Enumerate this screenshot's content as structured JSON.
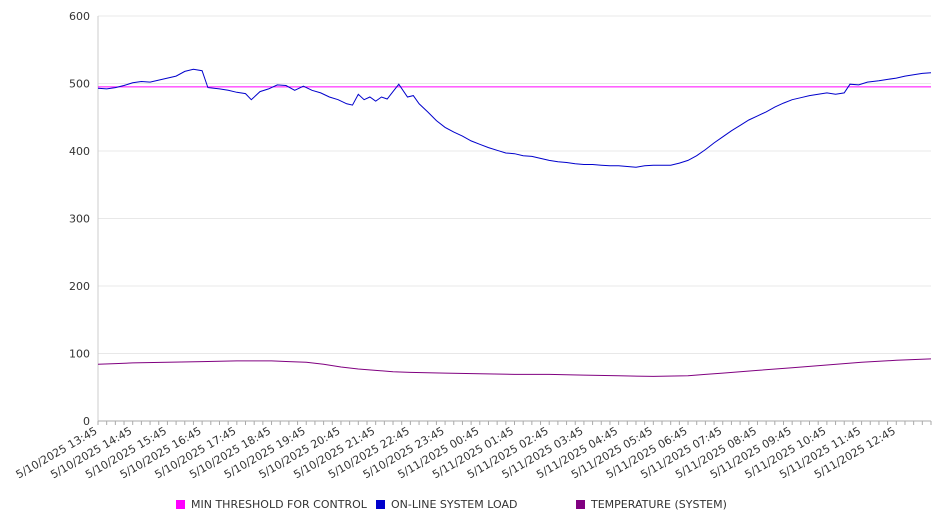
{
  "chart_data": {
    "type": "line",
    "title": "",
    "xlabel": "",
    "ylabel": "",
    "ylim": [
      0,
      600
    ],
    "yticks": [
      0,
      100,
      200,
      300,
      400,
      500,
      600
    ],
    "grid": true,
    "legend_position": "bottom",
    "x_tick_labels": [
      "5/10/2025 13:45",
      "5/10/2025 14:45",
      "5/10/2025 15:45",
      "5/10/2025 16:45",
      "5/10/2025 17:45",
      "5/10/2025 18:45",
      "5/10/2025 19:45",
      "5/10/2025 20:45",
      "5/10/2025 21:45",
      "5/10/2025 22:45",
      "5/10/2025 23:45",
      "5/11/2025 00:45",
      "5/11/2025 01:45",
      "5/11/2025 02:45",
      "5/11/2025 03:45",
      "5/11/2025 04:45",
      "5/11/2025 05:45",
      "5/11/2025 06:45",
      "5/11/2025 07:45",
      "5/11/2025 08:45",
      "5/11/2025 09:45",
      "5/11/2025 10:45",
      "5/11/2025 11:45",
      "5/11/2025 12:45"
    ],
    "x_start": "5/10/2025 13:45",
    "x_end": "5/11/2025 13:45",
    "series": [
      {
        "name": "MIN THRESHOLD FOR CONTROL",
        "color": "#ff00ff",
        "points": [
          [
            "5/10/2025 13:45",
            495
          ],
          [
            "5/11/2025 13:45",
            495
          ]
        ]
      },
      {
        "name": "ON-LINE SYSTEM LOAD",
        "color": "#0000cc",
        "points": [
          [
            "5/10/2025 13:45",
            493
          ],
          [
            "5/10/2025 14:00",
            492
          ],
          [
            "5/10/2025 14:15",
            494
          ],
          [
            "5/10/2025 14:30",
            497
          ],
          [
            "5/10/2025 14:45",
            501
          ],
          [
            "5/10/2025 15:00",
            503
          ],
          [
            "5/10/2025 15:15",
            502
          ],
          [
            "5/10/2025 15:30",
            505
          ],
          [
            "5/10/2025 15:45",
            508
          ],
          [
            "5/10/2025 16:00",
            511
          ],
          [
            "5/10/2025 16:15",
            518
          ],
          [
            "5/10/2025 16:30",
            521
          ],
          [
            "5/10/2025 16:45",
            519
          ],
          [
            "5/10/2025 16:55",
            494
          ],
          [
            "5/10/2025 17:15",
            492
          ],
          [
            "5/10/2025 17:30",
            490
          ],
          [
            "5/10/2025 17:45",
            487
          ],
          [
            "5/10/2025 18:00",
            485
          ],
          [
            "5/10/2025 18:10",
            476
          ],
          [
            "5/10/2025 18:25",
            488
          ],
          [
            "5/10/2025 18:40",
            492
          ],
          [
            "5/10/2025 18:55",
            498
          ],
          [
            "5/10/2025 19:10",
            497
          ],
          [
            "5/10/2025 19:25",
            490
          ],
          [
            "5/10/2025 19:40",
            496
          ],
          [
            "5/10/2025 19:55",
            490
          ],
          [
            "5/10/2025 20:10",
            486
          ],
          [
            "5/10/2025 20:25",
            480
          ],
          [
            "5/10/2025 20:40",
            476
          ],
          [
            "5/10/2025 20:55",
            470
          ],
          [
            "5/10/2025 21:05",
            468
          ],
          [
            "5/10/2025 21:15",
            484
          ],
          [
            "5/10/2025 21:25",
            476
          ],
          [
            "5/10/2025 21:35",
            480
          ],
          [
            "5/10/2025 21:45",
            474
          ],
          [
            "5/10/2025 21:55",
            480
          ],
          [
            "5/10/2025 22:05",
            477
          ],
          [
            "5/10/2025 22:15",
            488
          ],
          [
            "5/10/2025 22:25",
            499
          ],
          [
            "5/10/2025 22:40",
            480
          ],
          [
            "5/10/2025 22:50",
            482
          ],
          [
            "5/10/2025 23:00",
            470
          ],
          [
            "5/10/2025 23:15",
            458
          ],
          [
            "5/10/2025 23:30",
            445
          ],
          [
            "5/10/2025 23:45",
            435
          ],
          [
            "5/11/2025 00:00",
            428
          ],
          [
            "5/11/2025 00:15",
            422
          ],
          [
            "5/11/2025 00:30",
            415
          ],
          [
            "5/11/2025 00:45",
            410
          ],
          [
            "5/11/2025 01:00",
            405
          ],
          [
            "5/11/2025 01:15",
            401
          ],
          [
            "5/11/2025 01:30",
            397
          ],
          [
            "5/11/2025 01:45",
            396
          ],
          [
            "5/11/2025 02:00",
            393
          ],
          [
            "5/11/2025 02:15",
            392
          ],
          [
            "5/11/2025 02:30",
            389
          ],
          [
            "5/11/2025 02:45",
            386
          ],
          [
            "5/11/2025 03:00",
            384
          ],
          [
            "5/11/2025 03:15",
            383
          ],
          [
            "5/11/2025 03:30",
            381
          ],
          [
            "5/11/2025 03:45",
            380
          ],
          [
            "5/11/2025 04:00",
            380
          ],
          [
            "5/11/2025 04:15",
            379
          ],
          [
            "5/11/2025 04:30",
            378
          ],
          [
            "5/11/2025 04:45",
            378
          ],
          [
            "5/11/2025 05:00",
            377
          ],
          [
            "5/11/2025 05:15",
            376
          ],
          [
            "5/11/2025 05:30",
            378
          ],
          [
            "5/11/2025 05:45",
            379
          ],
          [
            "5/11/2025 06:00",
            379
          ],
          [
            "5/11/2025 06:15",
            379
          ],
          [
            "5/11/2025 06:30",
            382
          ],
          [
            "5/11/2025 06:45",
            386
          ],
          [
            "5/11/2025 07:00",
            393
          ],
          [
            "5/11/2025 07:15",
            402
          ],
          [
            "5/11/2025 07:30",
            412
          ],
          [
            "5/11/2025 07:45",
            421
          ],
          [
            "5/11/2025 08:00",
            430
          ],
          [
            "5/11/2025 08:15",
            438
          ],
          [
            "5/11/2025 08:30",
            446
          ],
          [
            "5/11/2025 08:45",
            452
          ],
          [
            "5/11/2025 09:00",
            458
          ],
          [
            "5/11/2025 09:15",
            465
          ],
          [
            "5/11/2025 09:30",
            471
          ],
          [
            "5/11/2025 09:45",
            476
          ],
          [
            "5/11/2025 10:00",
            479
          ],
          [
            "5/11/2025 10:15",
            482
          ],
          [
            "5/11/2025 10:30",
            484
          ],
          [
            "5/11/2025 10:45",
            486
          ],
          [
            "5/11/2025 11:00",
            484
          ],
          [
            "5/11/2025 11:15",
            486
          ],
          [
            "5/11/2025 11:25",
            499
          ],
          [
            "5/11/2025 11:40",
            498
          ],
          [
            "5/11/2025 11:55",
            502
          ],
          [
            "5/11/2025 12:15",
            504
          ],
          [
            "5/11/2025 12:30",
            506
          ],
          [
            "5/11/2025 12:45",
            508
          ],
          [
            "5/11/2025 13:00",
            511
          ],
          [
            "5/11/2025 13:15",
            513
          ],
          [
            "5/11/2025 13:30",
            515
          ],
          [
            "5/11/2025 13:45",
            516
          ]
        ]
      },
      {
        "name": "TEMPERATURE (SYSTEM)",
        "color": "#800080",
        "points": [
          [
            "5/10/2025 13:45",
            84
          ],
          [
            "5/10/2025 14:15",
            85
          ],
          [
            "5/10/2025 14:45",
            86
          ],
          [
            "5/10/2025 15:45",
            87
          ],
          [
            "5/10/2025 16:45",
            88
          ],
          [
            "5/10/2025 17:45",
            89
          ],
          [
            "5/10/2025 18:45",
            89
          ],
          [
            "5/10/2025 19:15",
            88
          ],
          [
            "5/10/2025 19:45",
            87
          ],
          [
            "5/10/2025 20:15",
            84
          ],
          [
            "5/10/2025 20:45",
            80
          ],
          [
            "5/10/2025 21:15",
            77
          ],
          [
            "5/10/2025 21:45",
            75
          ],
          [
            "5/10/2025 22:15",
            73
          ],
          [
            "5/10/2025 22:45",
            72
          ],
          [
            "5/10/2025 23:45",
            71
          ],
          [
            "5/11/2025 00:45",
            70
          ],
          [
            "5/11/2025 01:45",
            69
          ],
          [
            "5/11/2025 02:45",
            69
          ],
          [
            "5/11/2025 03:45",
            68
          ],
          [
            "5/11/2025 04:45",
            67
          ],
          [
            "5/11/2025 05:45",
            66
          ],
          [
            "5/11/2025 06:45",
            67
          ],
          [
            "5/11/2025 07:15",
            69
          ],
          [
            "5/11/2025 07:45",
            71
          ],
          [
            "5/11/2025 08:45",
            75
          ],
          [
            "5/11/2025 09:45",
            79
          ],
          [
            "5/11/2025 10:45",
            83
          ],
          [
            "5/11/2025 11:45",
            87
          ],
          [
            "5/11/2025 12:45",
            90
          ],
          [
            "5/11/2025 13:45",
            92
          ]
        ]
      }
    ]
  }
}
